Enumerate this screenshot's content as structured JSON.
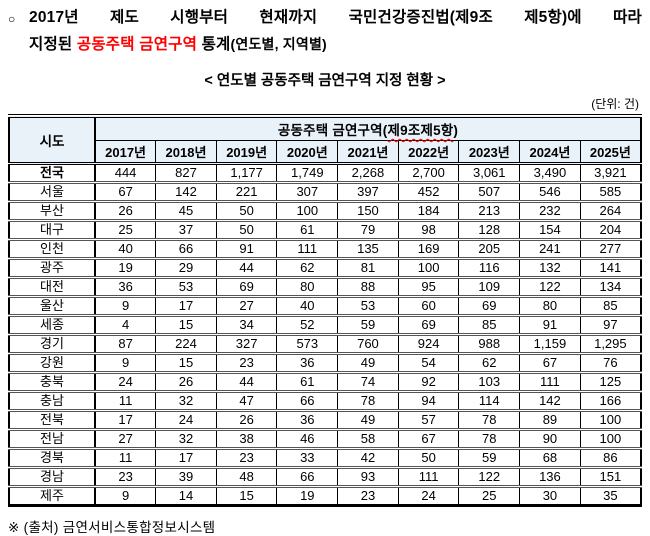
{
  "page": {
    "bullet": "○",
    "title": {
      "line1": "2017년 제도 시행부터 현재까지 국민건강증진법(제9조 제5항)에 따라",
      "line2_prefix": "지정된 ",
      "line2_highlight": "공동주택 금연구역",
      "line2_mid": " 통계",
      "line2_paren": "(연도별, 지역별)"
    },
    "subtitle": "< 연도별 공동주택 금연구역 지정 현황 >",
    "unit_note": "(단위: 건)",
    "source_note": "※ (출처) 금연서비스통합정보시스템"
  },
  "colors": {
    "highlight_red": "#ff0000",
    "header_bg": "#e9f1f9",
    "border": "#000000"
  },
  "table": {
    "corner_header": "시도",
    "group_header": {
      "prefix": "공동주택 금연구역(",
      "underlined": "제9조제5항",
      "suffix": ")"
    },
    "year_headers": [
      "2017년",
      "2018년",
      "2019년",
      "2020년",
      "2021년",
      "2022년",
      "2023년",
      "2024년",
      "2025년"
    ],
    "rows": [
      {
        "region": "전국",
        "total": true,
        "values": [
          "444",
          "827",
          "1,177",
          "1,749",
          "2,268",
          "2,700",
          "3,061",
          "3,490",
          "3,921"
        ]
      },
      {
        "region": "서울",
        "values": [
          "67",
          "142",
          "221",
          "307",
          "397",
          "452",
          "507",
          "546",
          "585"
        ]
      },
      {
        "region": "부산",
        "values": [
          "26",
          "45",
          "50",
          "100",
          "150",
          "184",
          "213",
          "232",
          "264"
        ]
      },
      {
        "region": "대구",
        "values": [
          "25",
          "37",
          "50",
          "61",
          "79",
          "98",
          "128",
          "154",
          "204"
        ]
      },
      {
        "region": "인천",
        "values": [
          "40",
          "66",
          "91",
          "111",
          "135",
          "169",
          "205",
          "241",
          "277"
        ]
      },
      {
        "region": "광주",
        "values": [
          "19",
          "29",
          "44",
          "62",
          "81",
          "100",
          "116",
          "132",
          "141"
        ]
      },
      {
        "region": "대전",
        "values": [
          "36",
          "53",
          "69",
          "80",
          "88",
          "95",
          "109",
          "122",
          "134"
        ]
      },
      {
        "region": "울산",
        "values": [
          "9",
          "17",
          "27",
          "40",
          "53",
          "60",
          "69",
          "80",
          "85"
        ]
      },
      {
        "region": "세종",
        "values": [
          "4",
          "15",
          "34",
          "52",
          "59",
          "69",
          "85",
          "91",
          "97"
        ]
      },
      {
        "region": "경기",
        "values": [
          "87",
          "224",
          "327",
          "573",
          "760",
          "924",
          "988",
          "1,159",
          "1,295"
        ]
      },
      {
        "region": "강원",
        "values": [
          "9",
          "15",
          "23",
          "36",
          "49",
          "54",
          "62",
          "67",
          "76"
        ]
      },
      {
        "region": "충북",
        "values": [
          "24",
          "26",
          "44",
          "61",
          "74",
          "92",
          "103",
          "111",
          "125"
        ]
      },
      {
        "region": "충남",
        "values": [
          "11",
          "32",
          "47",
          "66",
          "78",
          "94",
          "114",
          "142",
          "166"
        ]
      },
      {
        "region": "전북",
        "values": [
          "17",
          "24",
          "26",
          "36",
          "49",
          "57",
          "78",
          "89",
          "100"
        ]
      },
      {
        "region": "전남",
        "values": [
          "27",
          "32",
          "38",
          "46",
          "58",
          "67",
          "78",
          "90",
          "100"
        ]
      },
      {
        "region": "경북",
        "values": [
          "11",
          "17",
          "23",
          "33",
          "42",
          "50",
          "59",
          "68",
          "86"
        ]
      },
      {
        "region": "경남",
        "values": [
          "23",
          "39",
          "48",
          "66",
          "93",
          "111",
          "122",
          "136",
          "151"
        ]
      },
      {
        "region": "제주",
        "values": [
          "9",
          "14",
          "15",
          "19",
          "23",
          "24",
          "25",
          "30",
          "35"
        ]
      }
    ]
  }
}
